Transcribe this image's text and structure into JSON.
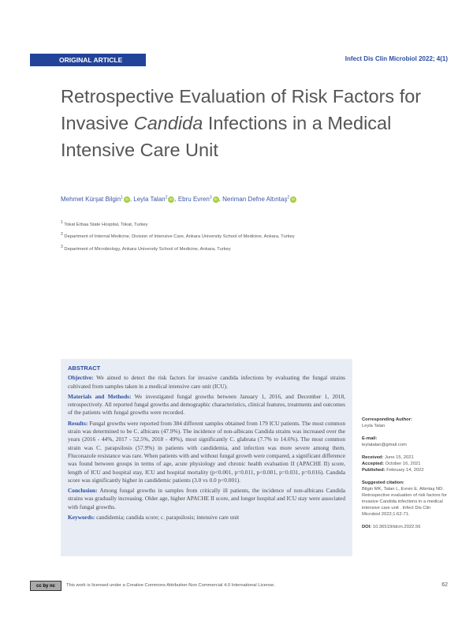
{
  "header": {
    "article_type": "ORIGINAL ARTICLE",
    "journal": "Infect Dis Clin Microbiol 2022; 4(1)"
  },
  "title": {
    "part1": "Retrospective Evaluation of Risk Factors for Invasive ",
    "italic": "Candida",
    "part2": " Infections in a Medical Intensive Care Unit"
  },
  "authors": [
    {
      "name": "Mehmet Kürşat Bilgin",
      "sup": "1"
    },
    {
      "name": "Leyla Talan",
      "sup": "2"
    },
    {
      "name": "Ebru Evren",
      "sup": "3"
    },
    {
      "name": "Neriman Defne Altıntaş",
      "sup": "2"
    }
  ],
  "orcid_label": "iD",
  "affiliations": [
    {
      "sup": "1",
      "text": "Tokat Erbaa State Hospital, Tokat, Turkey"
    },
    {
      "sup": "2",
      "text": "Department of Internal Medicine, Division of Intensive Care, Ankara University School of Medicine, Ankara, Turkey"
    },
    {
      "sup": "3",
      "text": "Department of Microbiology, Ankara University School of Medicine, Ankara, Turkey"
    }
  ],
  "abstract": {
    "heading": "ABSTRACT",
    "objective_label": "Objective:",
    "objective": " We aimed to detect the risk factors for invasive candida infections by evaluating the fungal strains cultivated from samples taken in a medical intensive care unit (ICU).",
    "methods_label": "Materials and Methods:",
    "methods": " We investigated fungal growths between January 1, 2016, and December 1, 2018, retrospectively. All reported fungal growths and demographic characteristics, clinical features, treatments and outcomes of the patients with fungal growths were recorded.",
    "results_label": "Results:",
    "results": " Fungal growths were reported from 384 different samples obtained from 179 ICU patients. The most common strain was determined to be C. albicans (47.9%). The incidence of non-albicans Candida strains was increased over the years (2016 - 44%, 2017 - 52.5%, 2018 - 49%), most significantly C. glabrata (7.7% to 14.6%). The most common strain was C. parapsilosis (57.9%) in patients with candidemia, and infection was more severe among them. Fluconazole resistance was rare. When patients with and without fungal growth were compared, a significant difference was found between groups in terms of age, acute physiology and chronic health evaluation II (APACHE II) score, length of ICU and hospital stay, ICU and hospital mortality (p<0.001, p=0.011, p<0.001, p=0.031, p=0.016). Candida score was significantly higher in candidemic patients (3.0 vs 0.0 p<0.001).",
    "conclusion_label": "Conclusion:",
    "conclusion": " Among fungal growths in samples from critically ill patients, the incidence of non-albicans Candida strains was gradually increasing. Older age, higher APACHE II score, and longer hospital and ICU stay were associated with fungal growths.",
    "keywords_label": "Keywords:",
    "keywords": " candidemia; candida score; c. parapsilosis; intensive care unit"
  },
  "sidebar": {
    "corr_label": "Corresponding Author:",
    "corr": "Leyla Talan",
    "email_label": "E-mail:",
    "email": "leylatalan@gmail.com",
    "received_label": "Received:",
    "received": " June 15, 2021",
    "accepted_label": "Accepted:",
    "accepted": " October 16, 2021",
    "published_label": "Published:",
    "published": " February 14, 2022",
    "citation_label": "Suggested citation:",
    "citation": "Bilgin MK, Talan L, Evren E, Altıntaş ND. Retrospective evaluation of risk factors for invasive Candida infections in a medical intensive care unit . Infect Dis Clin Microbiol 2022;1:62-71.",
    "doi_label": "DOI:",
    "doi": " 10.36519/idcm.2022.56"
  },
  "footer": {
    "cc_badge": "cc by nc",
    "license": "This work is licensed under a Creative Commons Attribution-Non Commercial 4.0 International License.",
    "page": "62"
  },
  "colors": {
    "brand_blue": "#22439a",
    "abstract_bg": "#e8ecf4",
    "orcid_green": "#a6ce39"
  }
}
